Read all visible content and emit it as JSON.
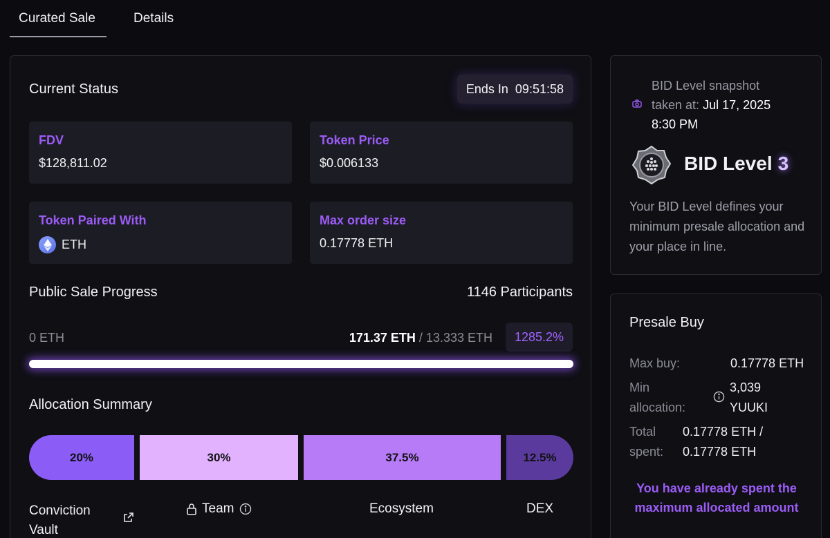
{
  "tabs": [
    "Curated Sale",
    "Details"
  ],
  "status": {
    "title": "Current Status",
    "ends_in_label": "Ends In",
    "ends_in_time": "09:51:58"
  },
  "info": {
    "fdv_label": "FDV",
    "fdv_value": "$128,811.02",
    "price_label": "Token Price",
    "price_value": "$0.006133",
    "paired_label": "Token Paired With",
    "paired_value": "ETH",
    "max_order_label": "Max order size",
    "max_order_value": "0.17778 ETH"
  },
  "progress": {
    "title": "Public Sale Progress",
    "participants": "1146 Participants",
    "start_label": "0 ETH",
    "raised": "171.37 ETH",
    "separator": "/",
    "target": "13.333 ETH",
    "percent_label": "1285.2%",
    "fill_fraction": 1.0
  },
  "allocation": {
    "title": "Allocation Summary",
    "segments": [
      {
        "label": "20%",
        "name": "Conviction Vault",
        "color": "#8b5cf6"
      },
      {
        "label": "30%",
        "name": "Team",
        "color": "#e2b2ff"
      },
      {
        "label": "37.5%",
        "name": "Ecosystem",
        "color": "#b77bf7"
      },
      {
        "label": "12.5%",
        "name": "DEX",
        "color": "#5b3a9e"
      }
    ]
  },
  "snapshot": {
    "line1": "BID Level snapshot",
    "line2_prefix": "taken at:",
    "date": "Jul 17, 2025",
    "time": "8:30 PM",
    "level_label": "BID Level",
    "level_value": "3",
    "description": "Your BID Level defines your minimum presale allocation and your place in line."
  },
  "presale": {
    "title": "Presale Buy",
    "max_buy_label": "Max buy:",
    "max_buy_value": "0.17778 ETH",
    "min_alloc_label_1": "Min",
    "min_alloc_label_2": "allocation:",
    "min_alloc_value_1": "3,039",
    "min_alloc_value_2": "YUUKI",
    "total_label_1": "Total",
    "total_label_2": "spent:",
    "total_value_1": "0.17778 ETH /",
    "total_value_2": "0.17778 ETH",
    "message": "You have already spent the maximum allocated amount"
  }
}
